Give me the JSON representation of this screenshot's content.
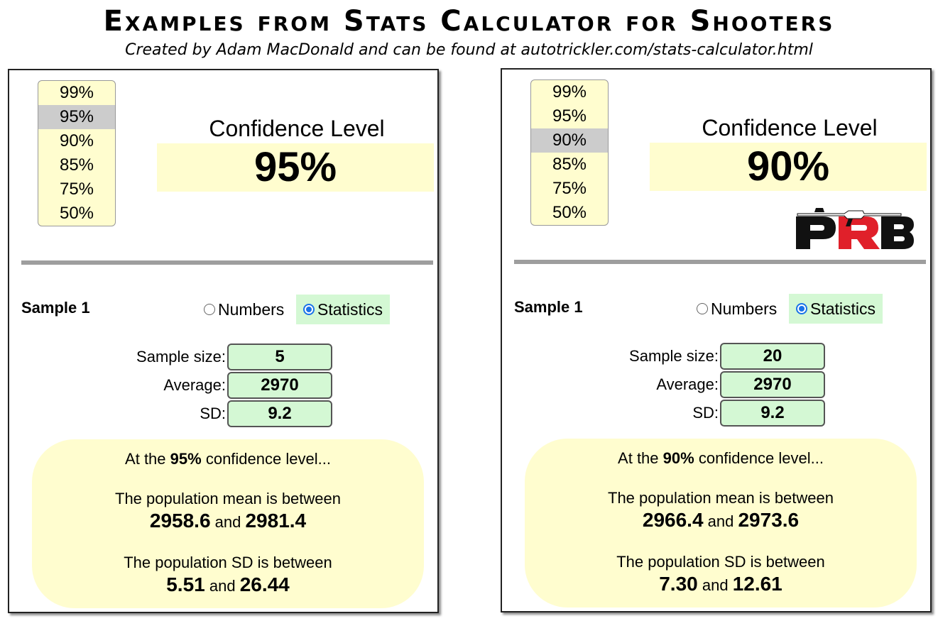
{
  "header": {
    "title": "Examples from Stats Calculator for Shooters",
    "subtitle": "Created by Adam MacDonald and can be found at autotrickler.com/stats-calculator.html"
  },
  "panels": [
    {
      "confidence_options": [
        "99%",
        "95%",
        "90%",
        "85%",
        "75%",
        "50%"
      ],
      "selected_index": 1,
      "confidence_label": "Confidence Level",
      "confidence_value": "95%",
      "sample_label": "Sample 1",
      "radio_numbers": "Numbers",
      "radio_statistics": "Statistics",
      "selected_radio": "statistics",
      "fields": {
        "sample_size_label": "Sample size:",
        "sample_size": "5",
        "average_label": "Average:",
        "average": "2970",
        "sd_label": "SD:",
        "sd": "9.2"
      },
      "results": {
        "intro_prefix": "At the",
        "intro_level": "95%",
        "intro_suffix": "confidence level...",
        "mean_label": "The population mean is between",
        "mean_low": "2958.6",
        "and": "and",
        "mean_high": "2981.4",
        "sd_label": "The population SD is between",
        "sd_low": "5.51",
        "sd_high": "26.44"
      }
    },
    {
      "confidence_options": [
        "99%",
        "95%",
        "90%",
        "85%",
        "75%",
        "50%"
      ],
      "selected_index": 2,
      "confidence_label": "Confidence Level",
      "confidence_value": "90%",
      "logo_text": "PRB",
      "sample_label": "Sample 1",
      "radio_numbers": "Numbers",
      "radio_statistics": "Statistics",
      "selected_radio": "statistics",
      "fields": {
        "sample_size_label": "Sample size:",
        "sample_size": "20",
        "average_label": "Average:",
        "average": "2970",
        "sd_label": "SD:",
        "sd": "9.2"
      },
      "results": {
        "intro_prefix": "At the",
        "intro_level": "90%",
        "intro_suffix": "confidence level...",
        "mean_label": "The population mean is between",
        "mean_low": "2966.4",
        "and": "and",
        "mean_high": "2973.6",
        "sd_label": "The population SD is between",
        "sd_low": "7.30",
        "sd_high": "12.61"
      }
    }
  ],
  "colors": {
    "pale_yellow": "#fffdcf",
    "pale_green": "#d4f8d4",
    "selected_gray": "#cccccc",
    "radio_blue": "#1a73e8",
    "logo_red": "#e0202a",
    "logo_dark": "#111111"
  }
}
